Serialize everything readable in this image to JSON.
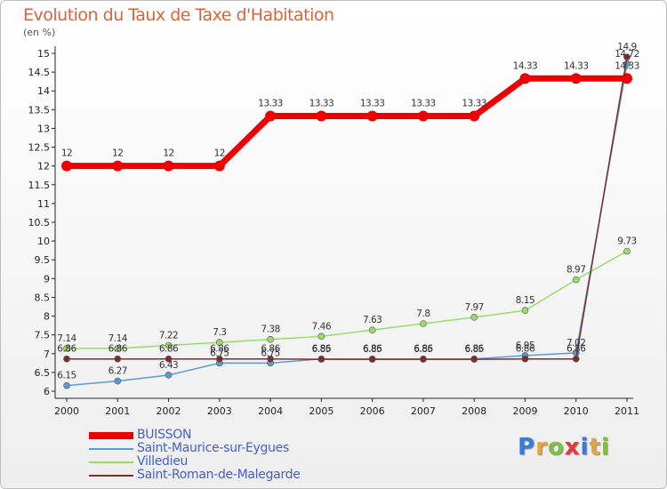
{
  "title": "Evolution du Taux de Taxe d'Habitation",
  "unit_label": "(en %)",
  "logo": {
    "text": "Proxiti"
  },
  "chart_data": {
    "type": "line",
    "title": "Evolution du Taux de Taxe d'Habitation",
    "ylabel": "(en %)",
    "xlabel": "",
    "ylim": [
      6,
      15
    ],
    "grid": false,
    "legend_placement": "bottom-left",
    "categories": [
      "2000",
      "2001",
      "2002",
      "2003",
      "2004",
      "2005",
      "2006",
      "2007",
      "2008",
      "2009",
      "2010",
      "2011"
    ],
    "y_ticks": [
      "6",
      "6.5",
      "7",
      "7.5",
      "8",
      "8.5",
      "9",
      "9.5",
      "10",
      "10.5",
      "11",
      "11.5",
      "12",
      "12.5",
      "13",
      "13.5",
      "14",
      "14.5",
      "15"
    ],
    "series": [
      {
        "name": "BUISSON",
        "color": "#ee0000",
        "values": [
          12,
          12,
          12,
          12,
          13.33,
          13.33,
          13.33,
          13.33,
          13.33,
          14.33,
          14.33,
          14.33
        ],
        "labels": [
          "12",
          "12",
          "12",
          "12",
          "13.33",
          "13.33",
          "13.33",
          "13.33",
          "13.33",
          "14.33",
          "14.33",
          "14.33"
        ]
      },
      {
        "name": "Saint-Maurice-sur-Eygues",
        "color": "#5b9bd5",
        "values": [
          6.15,
          6.27,
          6.43,
          6.75,
          6.75,
          6.86,
          6.86,
          6.86,
          6.86,
          6.95,
          7.02,
          14.72
        ],
        "labels": [
          "6.15",
          "6.27",
          "6.43",
          "6.75",
          "6.75",
          "6.86",
          "6.86",
          "6.86",
          "6.86",
          "6.95",
          "7.02",
          "14.72"
        ]
      },
      {
        "name": "Villedieu",
        "color": "#99dd66",
        "values": [
          7.14,
          7.14,
          7.22,
          7.3,
          7.38,
          7.46,
          7.63,
          7.8,
          7.97,
          8.15,
          8.97,
          9.73
        ],
        "labels": [
          "7.14",
          "7.14",
          "7.22",
          "7.3",
          "7.38",
          "7.46",
          "7.63",
          "7.8",
          "7.97",
          "8.15",
          "8.97",
          "9.73"
        ]
      },
      {
        "name": "Saint-Roman-de-Malegarde",
        "color": "#7a2e2e",
        "values": [
          6.86,
          6.86,
          6.86,
          6.86,
          6.86,
          6.85,
          6.85,
          6.85,
          6.85,
          6.86,
          6.86,
          14.9
        ],
        "labels": [
          "6.86",
          "6.86",
          "6.86",
          "6.86",
          "6.86",
          "6.85",
          "6.85",
          "6.85",
          "6.85",
          "6.86",
          "6.86",
          "14.9"
        ]
      }
    ]
  }
}
